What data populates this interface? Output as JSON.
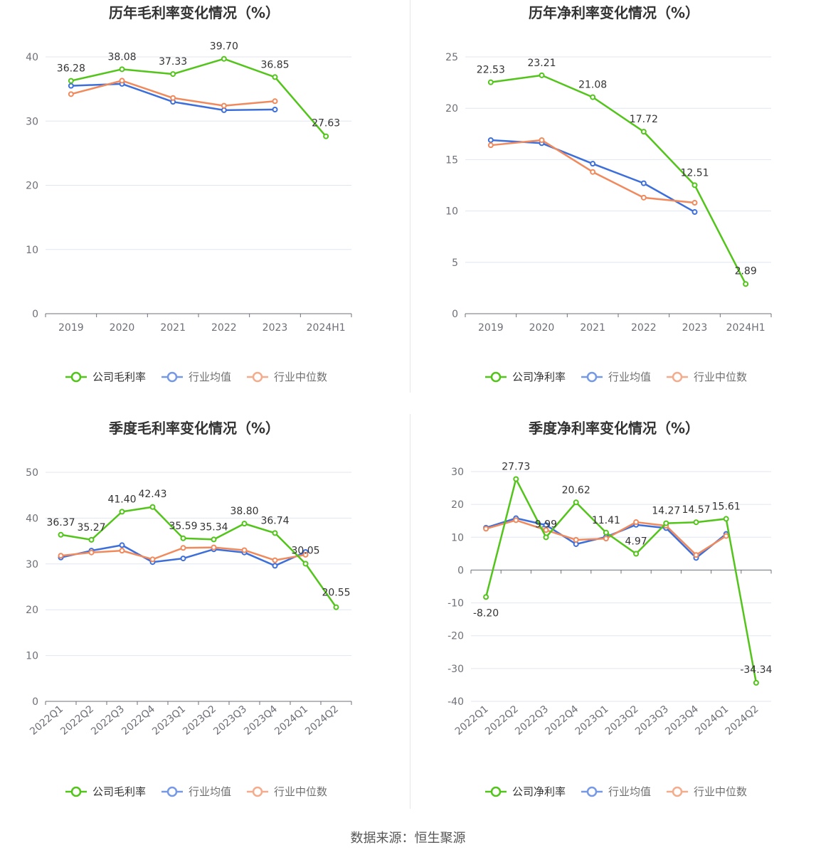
{
  "source": "数据来源：恒生聚源",
  "colors": {
    "company": "#52c41a",
    "avg": "#3d6fdb",
    "median": "#f08a5d"
  },
  "chart_data": [
    {
      "type": "line",
      "title": "历年毛利率变化情况（%）",
      "categories": [
        "2019",
        "2020",
        "2021",
        "2022",
        "2023",
        "2024H1"
      ],
      "ylim": [
        0,
        40
      ],
      "yticks": [
        0,
        10,
        20,
        30,
        40
      ],
      "legend": "bottom",
      "series": [
        {
          "name": "公司毛利率",
          "role": "company",
          "values": [
            36.28,
            38.08,
            37.33,
            39.7,
            36.85,
            27.63
          ],
          "labels": [
            "36.28",
            "38.08",
            "37.33",
            "39.70",
            "36.85",
            "27.63"
          ]
        },
        {
          "name": "行业均值",
          "role": "avg",
          "values": [
            35.5,
            35.8,
            33.0,
            31.7,
            31.8,
            null
          ]
        },
        {
          "name": "行业中位数",
          "role": "median",
          "values": [
            34.2,
            36.3,
            33.6,
            32.4,
            33.1,
            null
          ]
        }
      ]
    },
    {
      "type": "line",
      "title": "历年净利率变化情况（%）",
      "categories": [
        "2019",
        "2020",
        "2021",
        "2022",
        "2023",
        "2024H1"
      ],
      "ylim": [
        0,
        25
      ],
      "yticks": [
        0,
        5,
        10,
        15,
        20,
        25
      ],
      "legend": "bottom",
      "series": [
        {
          "name": "公司净利率",
          "role": "company",
          "values": [
            22.53,
            23.21,
            21.08,
            17.72,
            12.51,
            2.89
          ],
          "labels": [
            "22.53",
            "23.21",
            "21.08",
            "17.72",
            "12.51",
            "2.89"
          ]
        },
        {
          "name": "行业均值",
          "role": "avg",
          "values": [
            16.9,
            16.6,
            14.6,
            12.7,
            9.9,
            null
          ]
        },
        {
          "name": "行业中位数",
          "role": "median",
          "values": [
            16.4,
            16.9,
            13.8,
            11.3,
            10.8,
            null
          ]
        }
      ]
    },
    {
      "type": "line",
      "title": "季度毛利率变化情况（%）",
      "categories": [
        "2022Q1",
        "2022Q2",
        "2022Q3",
        "2022Q4",
        "2023Q1",
        "2023Q2",
        "2023Q3",
        "2023Q4",
        "2024Q1",
        "2024Q2"
      ],
      "ylim": [
        0,
        50
      ],
      "yticks": [
        0,
        10,
        20,
        30,
        40,
        50
      ],
      "legend": "bottom",
      "series": [
        {
          "name": "公司毛利率",
          "role": "company",
          "values": [
            36.37,
            35.27,
            41.4,
            42.43,
            35.59,
            35.34,
            38.8,
            36.74,
            30.05,
            20.55
          ],
          "labels": [
            "36.37",
            "35.27",
            "41.40",
            "42.43",
            "35.59",
            "35.34",
            "38.80",
            "36.74",
            "30.05",
            "20.55"
          ]
        },
        {
          "name": "行业均值",
          "role": "avg",
          "values": [
            31.4,
            32.9,
            34.1,
            30.4,
            31.2,
            33.2,
            32.5,
            29.6,
            32.6,
            null
          ]
        },
        {
          "name": "行业中位数",
          "role": "median",
          "values": [
            31.8,
            32.5,
            32.9,
            31.0,
            33.5,
            33.6,
            33.0,
            30.8,
            32.0,
            null
          ]
        }
      ]
    },
    {
      "type": "line",
      "title": "季度净利率变化情况（%）",
      "categories": [
        "2022Q1",
        "2022Q2",
        "2022Q3",
        "2022Q4",
        "2023Q1",
        "2023Q2",
        "2023Q3",
        "2023Q4",
        "2024Q1",
        "2024Q2"
      ],
      "ylim": [
        -40,
        30
      ],
      "yticks": [
        -40,
        -30,
        -20,
        -10,
        0,
        10,
        20,
        30
      ],
      "legend": "bottom",
      "series": [
        {
          "name": "公司净利率",
          "role": "company",
          "values": [
            -8.2,
            27.73,
            9.99,
            20.62,
            11.41,
            4.97,
            14.27,
            14.57,
            15.61,
            -34.34
          ],
          "labels": [
            "-8.20",
            "27.73",
            "9.99",
            "20.62",
            "11.41",
            "4.97",
            "14.27",
            "14.57",
            "15.61",
            "-34.34"
          ]
        },
        {
          "name": "行业均值",
          "role": "avg",
          "values": [
            12.9,
            15.8,
            13.7,
            7.9,
            10.1,
            13.8,
            12.8,
            3.7,
            11.0,
            null
          ]
        },
        {
          "name": "行业中位数",
          "role": "median",
          "values": [
            12.6,
            15.2,
            12.2,
            9.2,
            9.6,
            14.6,
            13.5,
            4.6,
            10.4,
            null
          ]
        }
      ]
    }
  ]
}
